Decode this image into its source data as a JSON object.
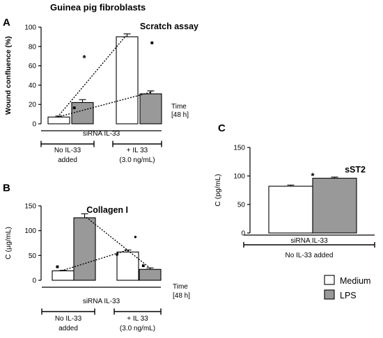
{
  "figure_title": "Guinea pig fibroblasts",
  "legend": [
    {
      "label": "Medium",
      "color": "#ffffff"
    },
    {
      "label": "LPS",
      "color": "#999999"
    }
  ],
  "colors": {
    "medium": "#ffffff",
    "lps": "#999999",
    "stroke": "#000000"
  },
  "chart_data": [
    {
      "panel": "A",
      "type": "bar",
      "title": "Scratch assay",
      "ylabel": "Wound confluence (%)",
      "ylim": [
        0,
        100
      ],
      "yticks": [
        0,
        20,
        40,
        60,
        80,
        100
      ],
      "categories": [
        "No IL-33 added",
        "+ IL 33 (3.0 ng/mL)"
      ],
      "category_lines": [
        [
          "No IL-33",
          "added"
        ],
        [
          "+ IL 33",
          "(3.0 ng/mL)"
        ]
      ],
      "series": [
        {
          "name": "Medium",
          "values": [
            7,
            90
          ],
          "errors": [
            1,
            3
          ]
        },
        {
          "name": "LPS",
          "values": [
            22,
            31
          ],
          "errors": [
            3,
            3
          ]
        }
      ],
      "group_label": "siRNA IL-33",
      "time_label": [
        "Time",
        "[48 h]"
      ],
      "annotations": [
        {
          "text": "*",
          "x": 0.8,
          "y": 69
        },
        {
          "text": "■",
          "x": 0.58,
          "y": 17
        },
        {
          "text": "■",
          "x": 1.79,
          "y": 84
        }
      ],
      "trend_lines": [
        {
          "from": [
            0.21,
            7
          ],
          "to": [
            1.21,
            91
          ]
        },
        {
          "from": [
            0.21,
            7
          ],
          "to": [
            1.79,
            33
          ]
        }
      ]
    },
    {
      "panel": "B",
      "type": "bar",
      "title": "Collagen I",
      "ylabel": "C (µg/mL)",
      "ylim": [
        0,
        150
      ],
      "yticks": [
        0,
        50,
        100,
        150
      ],
      "categories": [
        "No IL-33 added",
        "+ IL 33 (3.0 ng/mL)"
      ],
      "category_lines": [
        [
          "No IL-33",
          "added"
        ],
        [
          "+ IL 33",
          "(3.0 ng/mL)"
        ]
      ],
      "series": [
        {
          "name": "Medium",
          "values": [
            19,
            57
          ],
          "errors": [
            1,
            4
          ]
        },
        {
          "name": "LPS",
          "values": [
            126,
            22
          ],
          "errors": [
            8,
            3
          ]
        }
      ],
      "group_label": "siRNA IL-33",
      "time_label": [
        "Time",
        "[48 h]"
      ],
      "annotations": [
        {
          "text": "*",
          "x": 1.0,
          "y": 52
        },
        {
          "text": "■",
          "x": 0.12,
          "y": 28
        },
        {
          "text": "●",
          "x": 1.42,
          "y": 88
        },
        {
          "text": "■",
          "x": 1.6,
          "y": 30
        }
      ],
      "trend_lines": [
        {
          "from": [
            0.21,
            19
          ],
          "to": [
            1.21,
            60
          ]
        },
        {
          "from": [
            0.79,
            127
          ],
          "to": [
            1.79,
            22
          ]
        }
      ]
    },
    {
      "panel": "C",
      "type": "bar",
      "title": "sST2",
      "ylabel": "C (pg/mL)",
      "ylim": [
        0,
        150
      ],
      "yticks": [
        0,
        50,
        100,
        150
      ],
      "categories": [
        "No IL-33 added"
      ],
      "category_lines": [
        [
          "No IL-33 added"
        ]
      ],
      "series": [
        {
          "name": "Medium",
          "values": [
            82
          ],
          "errors": [
            2
          ]
        },
        {
          "name": "LPS",
          "values": [
            96
          ],
          "errors": [
            2
          ]
        }
      ],
      "group_label": "siRNA IL-33",
      "annotations": [
        {
          "text": "*",
          "x": 0.5,
          "y": 102
        }
      ],
      "trend_lines": []
    }
  ]
}
